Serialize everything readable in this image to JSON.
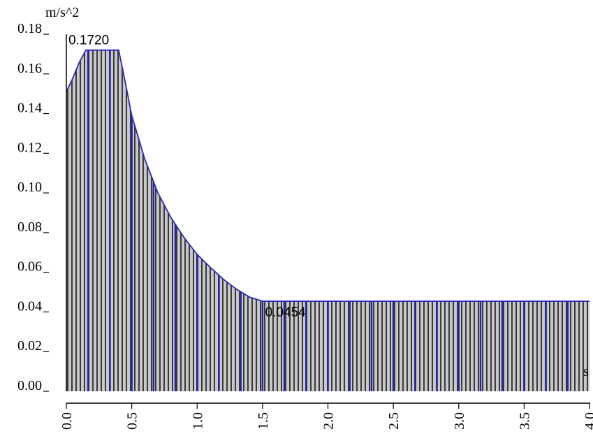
{
  "chart_data": {
    "type": "area",
    "title": "",
    "ylabel": "m/s^2",
    "xlabel": "s",
    "xlim": [
      0,
      4
    ],
    "ylim": [
      0,
      0.18
    ],
    "x_ticks": [
      "0.0",
      "0.5",
      "1.0",
      "1.5",
      "2.0",
      "2.5",
      "3.0",
      "3.5",
      "4.0"
    ],
    "y_ticks": [
      "0.18",
      "0.16",
      "0.14",
      "0.12",
      "0.10",
      "0.08",
      "0.06",
      "0.04",
      "0.02",
      "0.00"
    ],
    "annotations": [
      {
        "text": "0.1720",
        "x": 0.15,
        "y": 0.172
      },
      {
        "text": "0.0454",
        "x": 1.52,
        "y": 0.0454
      }
    ],
    "series": [
      {
        "x": [
          0.0,
          0.05,
          0.1,
          0.15,
          0.4,
          0.45,
          0.5,
          0.6,
          0.7,
          0.8,
          0.9,
          1.0,
          1.1,
          1.2,
          1.3,
          1.4,
          1.5,
          4.0
        ],
        "y": [
          0.151,
          0.158,
          0.166,
          0.172,
          0.172,
          0.156,
          0.139,
          0.117,
          0.1,
          0.0875,
          0.0775,
          0.069,
          0.0625,
          0.0565,
          0.0515,
          0.0475,
          0.0454,
          0.0454
        ]
      }
    ],
    "colors": {
      "line": "#2a2ab8",
      "fill": "#bdbdbd",
      "hatch": "#3a3a3a",
      "major_band": "#2424a8",
      "axis": "#000000"
    },
    "grid": false,
    "legend": "none"
  }
}
